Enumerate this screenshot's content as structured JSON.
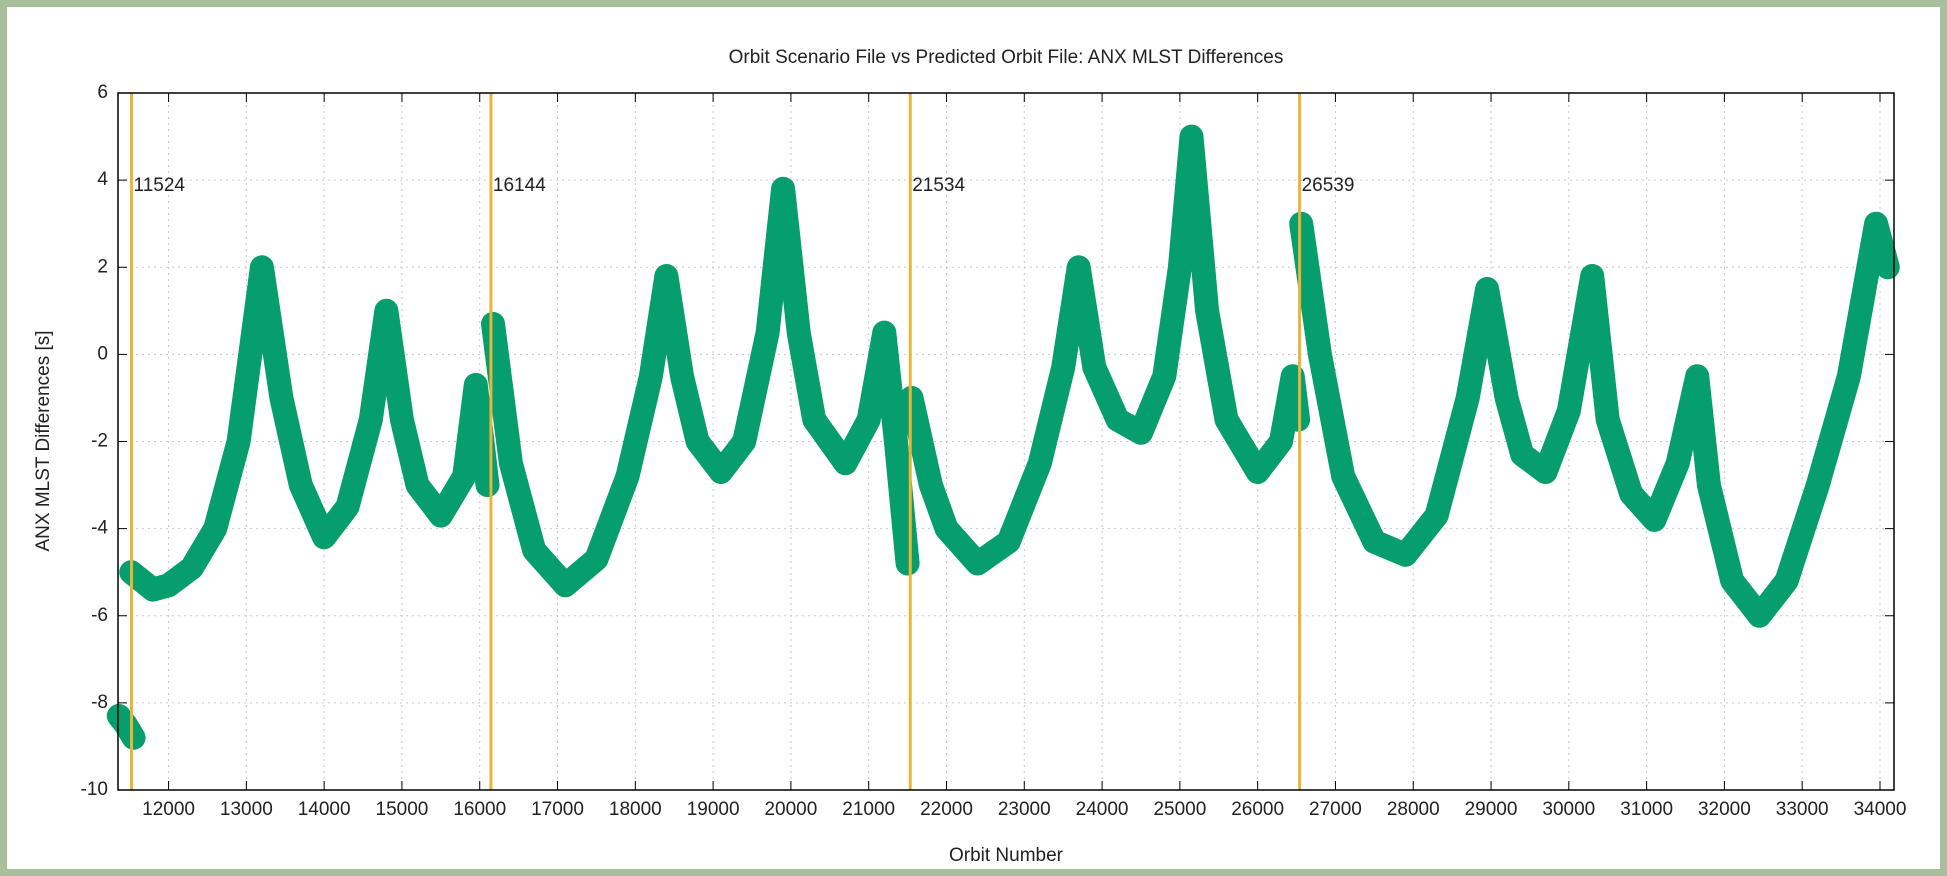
{
  "chart_data": {
    "type": "line",
    "title": "Orbit Scenario File vs Predicted Orbit File: ANX MLST Differences",
    "xlabel": "Orbit Number",
    "ylabel": "ANX MLST Differences [s]",
    "xlim": [
      11350,
      34180
    ],
    "ylim": [
      -10,
      6
    ],
    "xticks": [
      12000,
      13000,
      14000,
      15000,
      16000,
      17000,
      18000,
      19000,
      20000,
      21000,
      22000,
      23000,
      24000,
      25000,
      26000,
      27000,
      28000,
      29000,
      30000,
      31000,
      32000,
      33000,
      34000
    ],
    "yticks": [
      -10,
      -8,
      -6,
      -4,
      -2,
      0,
      2,
      4,
      6
    ],
    "grid": true,
    "vlines": [
      11524,
      16144,
      21534,
      26539
    ],
    "vline_color": "#e8b43a",
    "series": [
      {
        "color": "#079e6e",
        "x": [
          11360,
          11450,
          11550,
          11520,
          11520,
          11800,
          12000,
          12300,
          12600,
          12900,
          13200,
          13450,
          13700,
          14000,
          14300,
          14600,
          14800,
          15000,
          15200,
          15500,
          15800,
          15950,
          16100,
          16150,
          16170,
          16400,
          16700,
          17100,
          17500,
          17900,
          18200,
          18400,
          18600,
          18800,
          19100,
          19400,
          19700,
          19900,
          20100,
          20300,
          20700,
          21000,
          21200,
          21350,
          21500,
          21540,
          21550,
          21800,
          22000,
          22400,
          22800,
          23200,
          23500,
          23700,
          23900,
          24200,
          24500,
          24800,
          25000,
          25150,
          25350,
          25600,
          26000,
          26300,
          26450,
          26520,
          26545,
          26560,
          26800,
          27100,
          27500,
          27900,
          28300,
          28700,
          28950,
          29200,
          29400,
          29700,
          30000,
          30300,
          30500,
          30800,
          31100,
          31400,
          31650,
          31800,
          32100,
          32450,
          32800,
          33200,
          33600,
          33950,
          34100
        ],
        "values": [
          -8.3,
          -8.5,
          -8.8,
          null,
          -5.0,
          -5.4,
          -5.3,
          -4.9,
          -4.0,
          -2.0,
          2.0,
          -1.0,
          -3.0,
          -4.2,
          -3.5,
          -1.5,
          1.0,
          -1.5,
          -3.0,
          -3.7,
          -2.8,
          -0.7,
          -3.0,
          null,
          0.7,
          -2.5,
          -4.5,
          -5.3,
          -4.7,
          -2.8,
          -0.5,
          1.8,
          -0.5,
          -2.0,
          -2.7,
          -2.0,
          0.5,
          3.8,
          0.5,
          -1.5,
          -2.5,
          -1.5,
          0.5,
          -2.0,
          -4.8,
          null,
          -1.0,
          -3.0,
          -4.0,
          -4.8,
          -4.3,
          -2.5,
          -0.3,
          2.0,
          -0.3,
          -1.5,
          -1.8,
          -0.5,
          2.0,
          5.0,
          1.0,
          -1.5,
          -2.7,
          -2.0,
          -0.5,
          -1.5,
          null,
          3.0,
          0.0,
          -2.8,
          -4.3,
          -4.6,
          -3.7,
          -1.0,
          1.5,
          -1.0,
          -2.3,
          -2.7,
          -1.3,
          1.8,
          -1.5,
          -3.2,
          -3.8,
          -2.5,
          -0.5,
          -3.0,
          -5.2,
          -6.0,
          -5.2,
          -3.0,
          -0.5,
          3.0,
          2.0
        ]
      }
    ]
  }
}
